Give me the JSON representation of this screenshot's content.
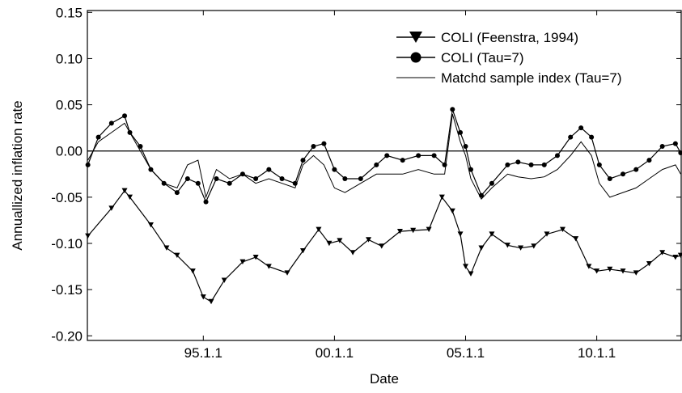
{
  "chart_data": {
    "type": "line",
    "title": "",
    "xlabel": "Date",
    "ylabel": "Annuallized inflation rate",
    "x_ticks": [
      {
        "label": "95.1.1",
        "value": 1995.0
      },
      {
        "label": "00.1.1",
        "value": 2000.0
      },
      {
        "label": "05.1.1",
        "value": 2005.0
      },
      {
        "label": "10.1.1",
        "value": 2010.0
      }
    ],
    "xlim": [
      1990.58,
      2013.22
    ],
    "ylim": [
      -0.205,
      0.152
    ],
    "y_ticks": [
      "0.15",
      "0.10",
      "0.05",
      "0.00",
      "-0.05",
      "-0.10",
      "-0.15",
      "-0.20"
    ],
    "y_tick_values": [
      0.15,
      0.1,
      0.05,
      0.0,
      -0.05,
      -0.1,
      -0.15,
      -0.2
    ],
    "reference_line": 0.0,
    "grid": false,
    "legend_position": "top-right",
    "series": [
      {
        "name": "COLI (Feenstra, 1994)",
        "marker": "triangle-down",
        "color": "#000000",
        "x": [
          1990.6,
          1991.5,
          1992.0,
          1992.2,
          1993.0,
          1993.6,
          1994.0,
          1994.6,
          1995.0,
          1995.3,
          1995.8,
          1996.5,
          1997.0,
          1997.5,
          1998.2,
          1998.8,
          1999.4,
          1999.8,
          2000.2,
          2000.7,
          2001.3,
          2001.8,
          2002.5,
          2003.0,
          2003.6,
          2004.1,
          2004.5,
          2004.8,
          2005.0,
          2005.2,
          2005.6,
          2006.0,
          2006.6,
          2007.1,
          2007.6,
          2008.1,
          2008.7,
          2009.2,
          2009.7,
          2010.0,
          2010.5,
          2011.0,
          2011.5,
          2012.0,
          2012.5,
          2013.0,
          2013.2
        ],
        "y": [
          -0.092,
          -0.062,
          -0.043,
          -0.05,
          -0.08,
          -0.105,
          -0.113,
          -0.13,
          -0.158,
          -0.163,
          -0.14,
          -0.12,
          -0.115,
          -0.125,
          -0.132,
          -0.108,
          -0.085,
          -0.1,
          -0.097,
          -0.11,
          -0.096,
          -0.103,
          -0.087,
          -0.086,
          -0.085,
          -0.05,
          -0.065,
          -0.09,
          -0.125,
          -0.133,
          -0.105,
          -0.09,
          -0.102,
          -0.105,
          -0.103,
          -0.09,
          -0.085,
          -0.095,
          -0.125,
          -0.13,
          -0.128,
          -0.13,
          -0.132,
          -0.122,
          -0.11,
          -0.115,
          -0.113
        ]
      },
      {
        "name": "COLI (Tau=7)",
        "marker": "circle",
        "color": "#000000",
        "x": [
          1990.6,
          1991.0,
          1991.5,
          1992.0,
          1992.2,
          1992.6,
          1993.0,
          1993.5,
          1994.0,
          1994.4,
          1994.8,
          1995.1,
          1995.5,
          1996.0,
          1996.5,
          1997.0,
          1997.5,
          1998.0,
          1998.5,
          1998.8,
          1999.2,
          1999.6,
          2000.0,
          2000.4,
          2001.0,
          2001.6,
          2002.0,
          2002.6,
          2003.2,
          2003.8,
          2004.2,
          2004.5,
          2004.8,
          2005.0,
          2005.2,
          2005.6,
          2006.0,
          2006.6,
          2007.0,
          2007.5,
          2008.0,
          2008.5,
          2009.0,
          2009.4,
          2009.8,
          2010.1,
          2010.5,
          2011.0,
          2011.5,
          2012.0,
          2012.5,
          2013.0,
          2013.2
        ],
        "y": [
          -0.015,
          0.015,
          0.03,
          0.038,
          0.02,
          0.005,
          -0.02,
          -0.035,
          -0.045,
          -0.03,
          -0.035,
          -0.055,
          -0.03,
          -0.035,
          -0.025,
          -0.03,
          -0.02,
          -0.03,
          -0.035,
          -0.01,
          0.005,
          0.008,
          -0.02,
          -0.03,
          -0.03,
          -0.015,
          -0.005,
          -0.01,
          -0.005,
          -0.005,
          -0.015,
          0.045,
          0.02,
          0.005,
          -0.02,
          -0.048,
          -0.035,
          -0.015,
          -0.012,
          -0.015,
          -0.015,
          -0.005,
          0.015,
          0.025,
          0.015,
          -0.015,
          -0.03,
          -0.025,
          -0.02,
          -0.01,
          0.005,
          0.008,
          -0.002
        ]
      },
      {
        "name": "Matchd sample index (Tau=7)",
        "marker": "none",
        "color": "#000000",
        "x": [
          1990.6,
          1991.0,
          1991.5,
          1992.0,
          1992.2,
          1992.6,
          1993.0,
          1993.5,
          1994.0,
          1994.4,
          1994.8,
          1995.1,
          1995.5,
          1996.0,
          1996.5,
          1997.0,
          1997.5,
          1998.0,
          1998.5,
          1998.8,
          1999.2,
          1999.6,
          2000.0,
          2000.4,
          2001.0,
          2001.6,
          2002.0,
          2002.6,
          2003.2,
          2003.8,
          2004.2,
          2004.5,
          2004.8,
          2005.0,
          2005.2,
          2005.6,
          2006.0,
          2006.6,
          2007.0,
          2007.5,
          2008.0,
          2008.5,
          2009.0,
          2009.4,
          2009.8,
          2010.1,
          2010.5,
          2011.0,
          2011.5,
          2012.0,
          2012.5,
          2013.0,
          2013.2
        ],
        "y": [
          -0.01,
          0.01,
          0.02,
          0.03,
          0.02,
          0.0,
          -0.02,
          -0.035,
          -0.04,
          -0.015,
          -0.01,
          -0.05,
          -0.02,
          -0.03,
          -0.025,
          -0.035,
          -0.03,
          -0.035,
          -0.04,
          -0.015,
          -0.005,
          -0.015,
          -0.04,
          -0.045,
          -0.035,
          -0.025,
          -0.025,
          -0.025,
          -0.02,
          -0.025,
          -0.025,
          0.04,
          0.01,
          -0.005,
          -0.03,
          -0.052,
          -0.04,
          -0.025,
          -0.028,
          -0.03,
          -0.028,
          -0.02,
          -0.005,
          0.01,
          -0.005,
          -0.035,
          -0.05,
          -0.045,
          -0.04,
          -0.03,
          -0.02,
          -0.015,
          -0.025
        ]
      }
    ]
  }
}
